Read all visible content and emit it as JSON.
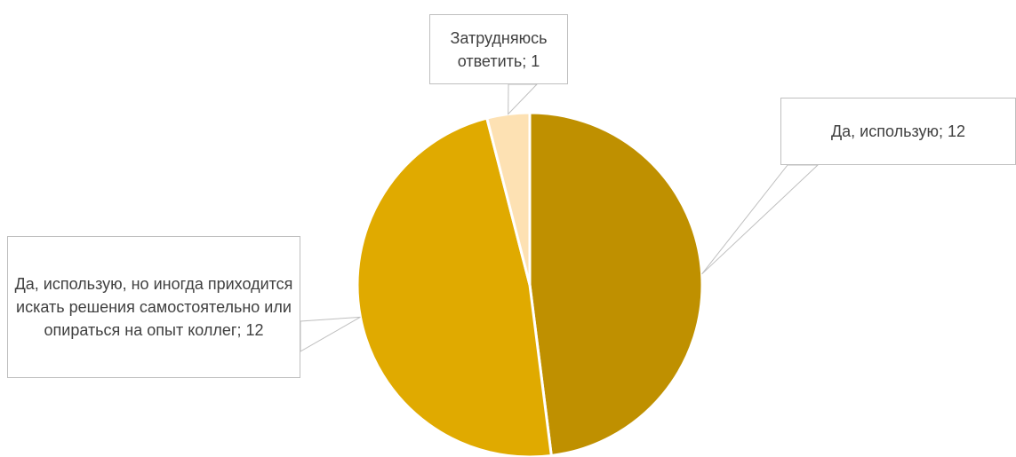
{
  "chart_data": {
    "type": "pie",
    "slices": [
      {
        "label": "Да, использую",
        "value": 12,
        "color": "#bf9000"
      },
      {
        "label": "Да, использую, но иногда приходится искать решения самостоятельно или опираться на опыт коллег",
        "value": 12,
        "color": "#e0aa00"
      },
      {
        "label": "Затрудняюсь ответить",
        "value": 1,
        "color": "#fde1b3"
      }
    ],
    "data_labels": [
      "Да, использую; 12",
      "Да, использую, но иногда приходится искать решения самостоятельно или опираться на опыт коллег; 12",
      "Затрудняюсь ответить; 1"
    ],
    "title": "",
    "legend": "none"
  }
}
